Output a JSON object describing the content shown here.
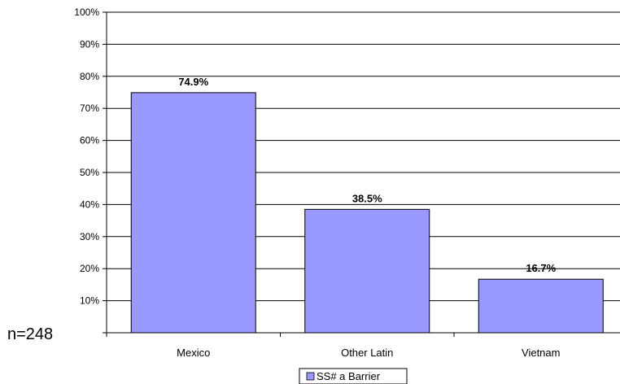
{
  "chart_data": {
    "type": "bar",
    "categories": [
      "Mexico",
      "Other Latin",
      "Vietnam"
    ],
    "series": [
      {
        "name": "SS# a Barrier",
        "values": [
          74.9,
          38.5,
          16.7
        ],
        "color": "#9999ff"
      }
    ],
    "data_labels": [
      "74.9%",
      "38.5%",
      "16.7%"
    ],
    "ylim": [
      0,
      100
    ],
    "yticks": [
      10,
      20,
      30,
      40,
      50,
      60,
      70,
      80,
      90,
      100
    ],
    "ytick_labels": [
      "10%",
      "20%",
      "30%",
      "40%",
      "50%",
      "60%",
      "70%",
      "80%",
      "90%",
      "100%"
    ],
    "grid": true,
    "legend_placement": "bottom",
    "note": "n=248"
  }
}
